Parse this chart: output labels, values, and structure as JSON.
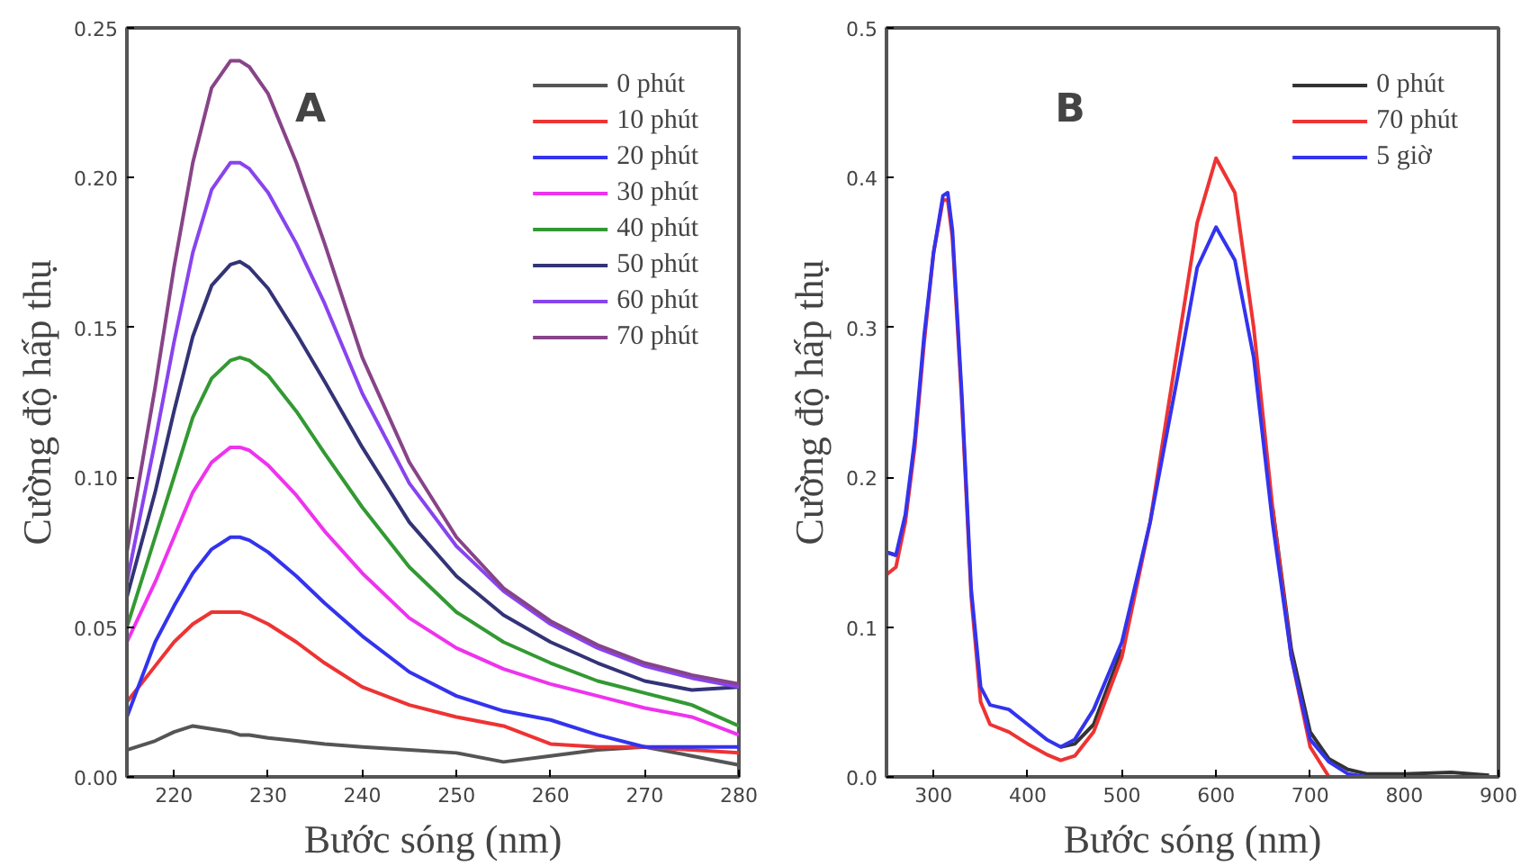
{
  "chart_data": [
    {
      "type": "line",
      "title": "A",
      "xlabel": "Bước sóng (nm)",
      "ylabel": "Cường độ hấp thụ",
      "x": [
        215,
        218,
        220,
        222,
        224,
        226,
        227,
        228,
        230,
        233,
        236,
        240,
        245,
        250,
        255,
        260,
        265,
        270,
        275,
        280
      ],
      "xlim": [
        215,
        280
      ],
      "xticks": [
        220,
        230,
        240,
        250,
        260,
        270,
        280
      ],
      "ylim": [
        0,
        0.25
      ],
      "yticks": [
        {
          "value": 0,
          "label": "0.00"
        },
        {
          "value": 0.05,
          "label": "0.05"
        },
        {
          "value": 0.1,
          "label": "0.10"
        },
        {
          "value": 0.15,
          "label": "0.15"
        },
        {
          "value": 0.2,
          "label": "0.20"
        },
        {
          "value": 0.25,
          "label": "0.25"
        }
      ],
      "grid": false,
      "legend": "top right",
      "marker": "none",
      "line_style": "solid",
      "series": [
        {
          "name": "0 phút",
          "color": "#555555",
          "values": [
            0.009,
            0.012,
            0.015,
            0.017,
            0.016,
            0.015,
            0.014,
            0.014,
            0.013,
            0.012,
            0.011,
            0.01,
            0.009,
            0.008,
            0.005,
            0.007,
            0.009,
            0.01,
            0.007,
            0.004
          ]
        },
        {
          "name": "10 phút",
          "color": "#ee3333",
          "values": [
            0.025,
            0.037,
            0.045,
            0.051,
            0.055,
            0.055,
            0.055,
            0.054,
            0.051,
            0.045,
            0.038,
            0.03,
            0.024,
            0.02,
            0.017,
            0.011,
            0.01,
            0.01,
            0.009,
            0.008
          ]
        },
        {
          "name": "20 phút",
          "color": "#3333ee",
          "values": [
            0.02,
            0.045,
            0.057,
            0.068,
            0.076,
            0.08,
            0.08,
            0.079,
            0.075,
            0.067,
            0.058,
            0.047,
            0.035,
            0.027,
            0.022,
            0.019,
            0.014,
            0.01,
            0.01,
            0.01
          ]
        },
        {
          "name": "30 phút",
          "color": "#ee33ee",
          "values": [
            0.045,
            0.065,
            0.08,
            0.095,
            0.105,
            0.11,
            0.11,
            0.109,
            0.104,
            0.094,
            0.082,
            0.068,
            0.053,
            0.043,
            0.036,
            0.031,
            0.027,
            0.023,
            0.02,
            0.014
          ]
        },
        {
          "name": "40 phút",
          "color": "#339933",
          "values": [
            0.05,
            0.08,
            0.1,
            0.12,
            0.133,
            0.139,
            0.14,
            0.139,
            0.134,
            0.122,
            0.108,
            0.09,
            0.07,
            0.055,
            0.045,
            0.038,
            0.032,
            0.028,
            0.024,
            0.017
          ]
        },
        {
          "name": "50 phút",
          "color": "#333377",
          "values": [
            0.06,
            0.095,
            0.122,
            0.147,
            0.164,
            0.171,
            0.172,
            0.17,
            0.163,
            0.148,
            0.132,
            0.11,
            0.085,
            0.067,
            0.054,
            0.045,
            0.038,
            0.032,
            0.029,
            0.03
          ]
        },
        {
          "name": "60 phút",
          "color": "#8844ee",
          "values": [
            0.065,
            0.112,
            0.145,
            0.175,
            0.196,
            0.205,
            0.205,
            0.203,
            0.195,
            0.178,
            0.158,
            0.128,
            0.098,
            0.077,
            0.062,
            0.051,
            0.043,
            0.037,
            0.033,
            0.03
          ]
        },
        {
          "name": "70 phút",
          "color": "#884488",
          "values": [
            0.075,
            0.13,
            0.17,
            0.205,
            0.23,
            0.239,
            0.239,
            0.237,
            0.228,
            0.205,
            0.178,
            0.14,
            0.105,
            0.08,
            0.063,
            0.052,
            0.044,
            0.038,
            0.034,
            0.031
          ]
        }
      ]
    },
    {
      "type": "line",
      "title": "B",
      "xlabel": "Bước sóng (nm)",
      "ylabel": "Cường độ hấp thụ",
      "x": [
        250,
        260,
        270,
        280,
        290,
        300,
        310,
        315,
        320,
        330,
        340,
        350,
        360,
        380,
        400,
        420,
        435,
        450,
        470,
        500,
        530,
        560,
        580,
        600,
        620,
        640,
        660,
        680,
        700,
        720,
        740,
        760,
        800,
        850,
        890
      ],
      "xlim": [
        250,
        900
      ],
      "xticks": [
        300,
        400,
        500,
        600,
        700,
        800,
        900
      ],
      "ylim": [
        0,
        0.5
      ],
      "yticks": [
        {
          "value": 0,
          "label": "0.0"
        },
        {
          "value": 0.1,
          "label": "0.1"
        },
        {
          "value": 0.2,
          "label": "0.2"
        },
        {
          "value": 0.3,
          "label": "0.3"
        },
        {
          "value": 0.4,
          "label": "0.4"
        },
        {
          "value": 0.5,
          "label": "0.5"
        }
      ],
      "grid": false,
      "legend": "top right",
      "marker": "none",
      "line_style": "solid",
      "series": [
        {
          "name": "0 phút",
          "color": "#333333",
          "values": [
            0.15,
            0.148,
            null,
            null,
            null,
            null,
            null,
            null,
            null,
            null,
            null,
            null,
            null,
            null,
            null,
            null,
            0.02,
            0.022,
            0.035,
            0.085,
            null,
            null,
            null,
            null,
            null,
            null,
            0.18,
            0.085,
            0.03,
            0.012,
            0.005,
            0.002,
            0.002,
            0.003,
            0.001
          ]
        },
        {
          "name": "70 phút",
          "color": "#ee3333",
          "values": [
            0.135,
            0.14,
            0.17,
            0.22,
            0.29,
            0.35,
            0.385,
            0.385,
            0.36,
            0.25,
            0.12,
            0.05,
            0.035,
            0.03,
            0.022,
            0.015,
            0.011,
            0.014,
            0.03,
            0.08,
            0.17,
            0.29,
            0.37,
            0.413,
            0.39,
            0.3,
            0.18,
            0.08,
            0.02,
            0.0,
            null,
            null,
            null,
            null,
            null
          ]
        },
        {
          "name": "5 giờ",
          "color": "#3333ee",
          "values": [
            0.15,
            0.148,
            0.175,
            0.225,
            0.295,
            0.35,
            0.388,
            0.39,
            0.365,
            0.255,
            0.125,
            0.06,
            0.048,
            0.045,
            0.035,
            0.025,
            0.02,
            0.025,
            0.045,
            0.09,
            0.17,
            0.27,
            0.34,
            0.367,
            0.345,
            0.28,
            0.17,
            0.08,
            0.025,
            0.01,
            0.002,
            0.0,
            null,
            null,
            null
          ]
        }
      ]
    }
  ]
}
